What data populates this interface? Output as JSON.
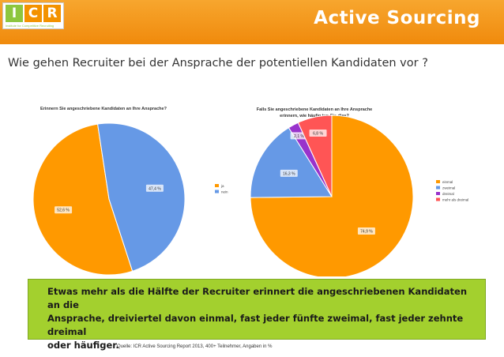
{
  "logo": {
    "letters": [
      "I",
      "C",
      "R"
    ],
    "subtitle": "Institute for Competitive Recruiting"
  },
  "header": {
    "title": "Active Sourcing"
  },
  "subtitle": "Wie gehen Recruiter bei der Ansprache der potentiellen Kandidaten vor ?",
  "colors": {
    "orange": "#ff9900",
    "blue": "#6699e6",
    "purple": "#9933cc",
    "red": "#ff5555",
    "callout": "#a3d02e",
    "header": "#f39200"
  },
  "chart_data": [
    {
      "type": "pie",
      "title": "Erinnern Sie angeschriebene Kandidaten an Ihre Ansprache?",
      "slices": [
        {
          "label": "ja",
          "value": 52.6,
          "display": "52,6 %",
          "color": "#ff9900"
        },
        {
          "label": "nein",
          "value": 47.4,
          "display": "47,4 %",
          "color": "#6699e6"
        }
      ],
      "legend": "right"
    },
    {
      "type": "pie",
      "title": "Falls Sie angeschriebene Kandidaten an Ihre Ansprache erinnern, wie häufig tun Sie dies?",
      "slices": [
        {
          "label": "einmal",
          "value": 74.9,
          "display": "74,9 %",
          "color": "#ff9900"
        },
        {
          "label": "zweimal",
          "value": 16.3,
          "display": "16,3 %",
          "color": "#6699e6"
        },
        {
          "label": "dreimal",
          "value": 2.1,
          "display": "2,1 %",
          "color": "#9933cc"
        },
        {
          "label": "mehr als dreimal",
          "value": 6.8,
          "display": "6,8 %",
          "color": "#ff5555"
        }
      ],
      "legend": "right"
    }
  ],
  "callout": {
    "line1": "Etwas mehr als die Hälfte der Recruiter erinnert die angeschriebenen Kandidaten an die",
    "line2": "Ansprache, dreiviertel davon einmal, fast jeder fünfte zweimal, fast jeder zehnte dreimal",
    "line3": "oder häufiger."
  },
  "footer": {
    "source": "Quelle: ICR Active Sourcing Report 2013, 400+ Teilnehmer, Angaben in %"
  }
}
